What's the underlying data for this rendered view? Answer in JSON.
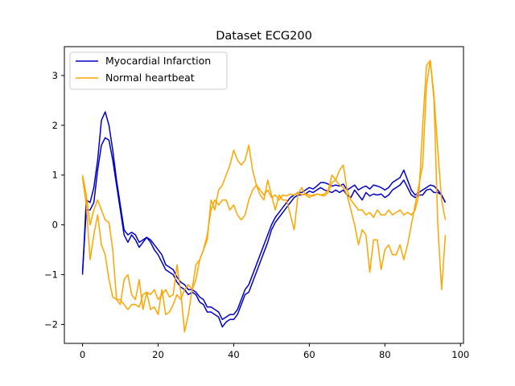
{
  "chart_data": {
    "type": "line",
    "title": "Dataset ECG200",
    "xlabel": "",
    "ylabel": "",
    "xlim": [
      -4.8,
      100.8
    ],
    "ylim": [
      -2.38,
      3.58
    ],
    "xticks": [
      0,
      20,
      40,
      60,
      80,
      100
    ],
    "yticks": [
      -2,
      -1,
      0,
      1,
      2,
      3
    ],
    "grid": false,
    "legend": {
      "placement": "top-left",
      "entries": [
        {
          "label": "Myocardial Infarction",
          "color": "#0000cc"
        },
        {
          "label": "Normal heartbeat",
          "color": "#ffa500"
        }
      ]
    },
    "series": [
      {
        "name": "Myocardial Infarction",
        "color": "#0000cc",
        "values": [
          -1.0,
          0.5,
          0.45,
          0.75,
          1.3,
          2.1,
          2.27,
          2.0,
          1.5,
          0.9,
          0.4,
          -0.1,
          -0.2,
          -0.15,
          -0.2,
          -0.35,
          -0.3,
          -0.25,
          -0.3,
          -0.4,
          -0.5,
          -0.6,
          -0.8,
          -0.85,
          -0.9,
          -1.05,
          -1.15,
          -1.2,
          -1.3,
          -1.3,
          -1.35,
          -1.45,
          -1.5,
          -1.65,
          -1.65,
          -1.7,
          -1.75,
          -1.9,
          -1.85,
          -1.8,
          -1.8,
          -1.7,
          -1.5,
          -1.3,
          -1.2,
          -1.0,
          -0.8,
          -0.6,
          -0.4,
          -0.2,
          0.0,
          0.15,
          0.25,
          0.35,
          0.45,
          0.55,
          0.6,
          0.65,
          0.65,
          0.7,
          0.75,
          0.72,
          0.78,
          0.85,
          0.85,
          0.82,
          0.78,
          0.8,
          0.78,
          0.82,
          0.7,
          0.75,
          0.8,
          0.7,
          0.75,
          0.78,
          0.72,
          0.8,
          0.78,
          0.75,
          0.7,
          0.75,
          0.85,
          0.9,
          0.95,
          1.1,
          0.9,
          0.7,
          0.6,
          0.65,
          0.7,
          0.75,
          0.8,
          0.78,
          0.7,
          0.6,
          0.45
        ]
      },
      {
        "name": "Myocardial Infarction",
        "color": "#0000cc",
        "values": [
          -0.95,
          0.3,
          0.3,
          0.45,
          1.1,
          1.6,
          1.75,
          1.7,
          1.3,
          0.8,
          0.3,
          -0.2,
          -0.35,
          -0.2,
          -0.3,
          -0.45,
          -0.35,
          -0.25,
          -0.35,
          -0.5,
          -0.6,
          -0.75,
          -0.9,
          -0.95,
          -1.0,
          -1.15,
          -1.25,
          -1.3,
          -1.4,
          -1.35,
          -1.4,
          -1.55,
          -1.6,
          -1.75,
          -1.75,
          -1.8,
          -1.85,
          -2.05,
          -1.95,
          -1.9,
          -1.9,
          -1.8,
          -1.6,
          -1.4,
          -1.35,
          -1.15,
          -0.95,
          -0.75,
          -0.55,
          -0.35,
          -0.1,
          0.05,
          0.15,
          0.25,
          0.35,
          0.45,
          0.55,
          0.6,
          0.6,
          0.62,
          0.68,
          0.65,
          0.7,
          0.75,
          0.7,
          0.68,
          0.65,
          0.7,
          0.65,
          0.7,
          0.6,
          0.55,
          0.7,
          0.6,
          0.5,
          0.65,
          0.58,
          0.62,
          0.6,
          0.62,
          0.55,
          0.6,
          0.7,
          0.75,
          0.8,
          0.9,
          0.75,
          0.6,
          0.55,
          0.6,
          0.6,
          0.7,
          0.72,
          0.65,
          0.65,
          0.6,
          0.45
        ]
      },
      {
        "name": "Normal heartbeat",
        "color": "#ffa500",
        "values": [
          1.0,
          0.6,
          0.0,
          0.3,
          0.5,
          0.3,
          0.1,
          0.05,
          -0.5,
          -1.5,
          -1.6,
          -1.1,
          -1.0,
          -1.4,
          -1.5,
          -1.1,
          -1.7,
          -1.35,
          -1.4,
          -1.3,
          -1.5,
          -1.4,
          -1.3,
          -1.45,
          -1.4,
          -0.8,
          -1.35,
          -2.15,
          -1.8,
          -1.3,
          -1.1,
          -0.7,
          -0.5,
          -0.3,
          0.5,
          0.3,
          0.7,
          0.8,
          1.0,
          1.2,
          1.5,
          1.3,
          1.2,
          1.3,
          1.6,
          1.1,
          0.8,
          0.6,
          0.5,
          0.9,
          0.6,
          0.3,
          0.6,
          0.5,
          0.5,
          0.2,
          -0.1,
          0.6,
          0.75,
          0.6,
          0.55,
          0.6,
          0.62,
          0.6,
          0.58,
          0.65,
          0.85,
          0.9,
          0.8,
          0.75,
          0.6,
          0.3,
          0.0,
          -0.4,
          -0.1,
          -0.2,
          -0.95,
          -0.3,
          -0.3,
          -0.9,
          -0.5,
          -0.4,
          -0.6,
          -0.6,
          -0.4,
          -0.7,
          -0.4,
          0.0,
          0.4,
          0.8,
          1.2,
          2.8,
          3.3,
          2.5,
          0.0,
          -1.3,
          -0.2
        ]
      },
      {
        "name": "Normal heartbeat",
        "color": "#ffa500",
        "values": [
          0.95,
          0.4,
          -0.7,
          -0.2,
          0.2,
          -0.4,
          -0.6,
          -1.1,
          -1.45,
          -1.5,
          -1.5,
          -1.6,
          -1.7,
          -1.6,
          -1.6,
          -1.65,
          -1.4,
          -1.35,
          -1.7,
          -1.65,
          -1.8,
          -1.3,
          -1.8,
          -1.75,
          -1.6,
          -1.4,
          -1.5,
          -1.3,
          -1.2,
          -1.3,
          -0.8,
          -0.7,
          -0.5,
          -0.2,
          0.3,
          0.5,
          0.4,
          0.5,
          0.5,
          0.3,
          0.4,
          0.2,
          0.1,
          0.2,
          0.5,
          0.7,
          0.8,
          0.7,
          0.6,
          0.7,
          0.55,
          0.6,
          0.5,
          0.6,
          0.58,
          0.62,
          0.6,
          0.65,
          0.6,
          0.62,
          0.6,
          0.58,
          0.62,
          0.6,
          0.62,
          0.7,
          1.0,
          0.9,
          1.1,
          1.2,
          0.7,
          0.5,
          0.4,
          0.3,
          0.3,
          0.2,
          0.25,
          0.15,
          0.3,
          0.2,
          0.2,
          0.3,
          0.2,
          0.25,
          0.3,
          0.2,
          0.25,
          0.2,
          0.3,
          0.6,
          2.0,
          3.2,
          3.3,
          2.6,
          1.5,
          0.5,
          0.1
        ]
      }
    ]
  }
}
